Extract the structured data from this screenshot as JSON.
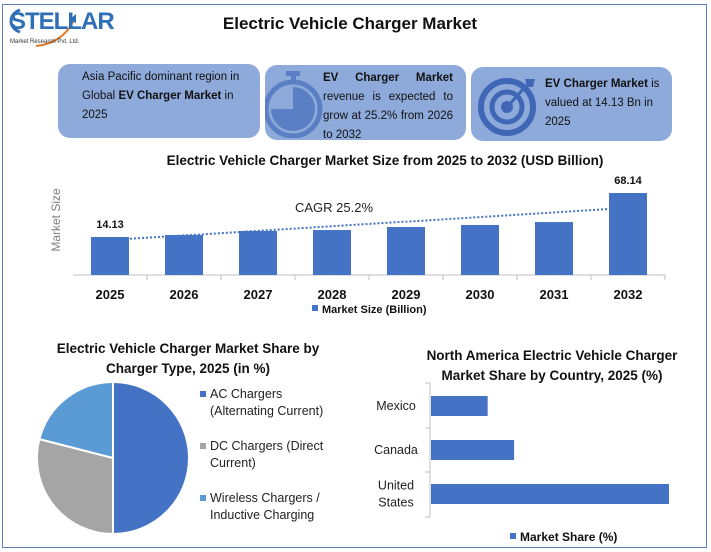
{
  "header": {
    "title": "Electric Vehicle Charger Market",
    "logo_text": "STELLAR",
    "logo_subtext": "Market Research Pvt. Ltd."
  },
  "cards": [
    {
      "pre": "Asia Pacific dominant region in Global ",
      "bold": "EV Charger Market",
      "post": " in 2025",
      "icon": "none"
    },
    {
      "pre": "",
      "bold": "EV Charger Market",
      "post": " revenue is expected to grow at 25.2% from 2026 to 2032",
      "icon": "stopwatch-icon"
    },
    {
      "pre": "",
      "bold": "EV Charger Market",
      "post": " is valued at 14.13 Bn in 2025",
      "icon": "target-icon"
    }
  ],
  "colors": {
    "bar": "#4472c4",
    "card": "#8eaadb",
    "pie_ac": "#4472c4",
    "pie_dc": "#a5a5a5",
    "pie_wireless": "#5b9bd5"
  },
  "chart_data": [
    {
      "type": "bar",
      "title": "Electric Vehicle Charger Market Size from 2025 to 2032 (USD Billion)",
      "ylabel": "Market Size",
      "categories": [
        "2025",
        "2026",
        "2027",
        "2028",
        "2029",
        "2030",
        "2031",
        "2032"
      ],
      "series": [
        {
          "name": "Market Size (Billion)",
          "values": [
            14.13,
            16.6,
            21.5,
            22.7,
            26.4,
            28.9,
            32.5,
            68.14
          ]
        }
      ],
      "data_labels": {
        "2025": "14.13",
        "2032": "68.14"
      },
      "annotation": "CAGR 25.2%",
      "trendline": "dotted",
      "legend": "bottom",
      "grid": false
    },
    {
      "type": "pie",
      "title": "Electric Vehicle Charger Market Share by Charger Type, 2025 (in %)",
      "categories": [
        "AC Chargers (Alternating Current)",
        "DC Chargers (Direct Current)",
        "Wireless Chargers / Inductive Charging"
      ],
      "legend_lines": [
        [
          "AC Chargers",
          "(Alternating Current)"
        ],
        [
          "DC Chargers (Direct",
          "Current)"
        ],
        [
          "Wireless Chargers /",
          "Inductive Charging"
        ]
      ],
      "values": [
        50,
        29,
        21
      ],
      "legend": "right"
    },
    {
      "type": "bar",
      "orientation": "horizontal",
      "title": "North America Electric Vehicle Charger Market Share by Country, 2025 (%)",
      "categories": [
        "Mexico",
        "Canada",
        "United States"
      ],
      "category_lines": [
        [
          "Mexico"
        ],
        [
          "Canada"
        ],
        [
          "United",
          "States"
        ]
      ],
      "series": [
        {
          "name": "Market Share (%)",
          "values": [
            15,
            22,
            63
          ]
        }
      ],
      "legend": "bottom",
      "grid": false
    }
  ]
}
